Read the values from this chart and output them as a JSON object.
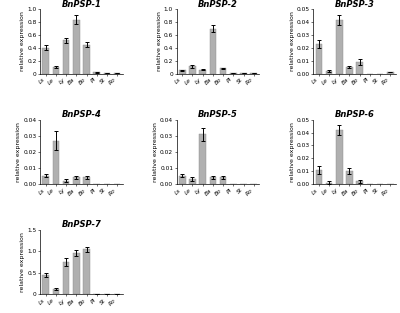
{
  "panels": [
    {
      "title": "BnPSP-1",
      "ylim": [
        0,
        1.0
      ],
      "yticks": [
        0.0,
        0.2,
        0.4,
        0.6,
        0.8,
        1.0
      ],
      "yticklabels": [
        "0",
        "0.2",
        "0.4",
        "0.6",
        "0.8",
        "1.0"
      ],
      "values": [
        0.4,
        0.1,
        0.52,
        0.84,
        0.45,
        0.02,
        0.01,
        0.01
      ],
      "errors": [
        0.04,
        0.02,
        0.04,
        0.07,
        0.04,
        0.005,
        0.005,
        0.005
      ]
    },
    {
      "title": "BnPSP-2",
      "ylim": [
        0,
        1.0
      ],
      "yticks": [
        0.0,
        0.2,
        0.4,
        0.6,
        0.8,
        1.0
      ],
      "yticklabels": [
        "0",
        "0.2",
        "0.4",
        "0.6",
        "0.8",
        "1.0"
      ],
      "values": [
        0.05,
        0.11,
        0.06,
        0.7,
        0.08,
        0.005,
        0.005,
        0.01
      ],
      "errors": [
        0.01,
        0.02,
        0.01,
        0.055,
        0.01,
        0.002,
        0.002,
        0.002
      ]
    },
    {
      "title": "BnPSP-3",
      "ylim": [
        0,
        0.05
      ],
      "yticks": [
        0.0,
        0.01,
        0.02,
        0.03,
        0.04,
        0.05
      ],
      "yticklabels": [
        "0.00",
        "0.01",
        "0.02",
        "0.03",
        "0.04",
        "0.05"
      ],
      "values": [
        0.023,
        0.002,
        0.042,
        0.005,
        0.009,
        0.0,
        0.0,
        0.001
      ],
      "errors": [
        0.003,
        0.001,
        0.004,
        0.001,
        0.002,
        0.0,
        0.0,
        0.0
      ]
    },
    {
      "title": "BnPSP-4",
      "ylim": [
        0,
        0.04
      ],
      "yticks": [
        0.0,
        0.01,
        0.02,
        0.03,
        0.04
      ],
      "yticklabels": [
        "0.00",
        "0.01",
        "0.02",
        "0.03",
        "0.04"
      ],
      "values": [
        0.005,
        0.027,
        0.002,
        0.004,
        0.004,
        0.0,
        0.0,
        0.0
      ],
      "errors": [
        0.001,
        0.006,
        0.001,
        0.001,
        0.001,
        0.0,
        0.0,
        0.0
      ]
    },
    {
      "title": "BnPSP-5",
      "ylim": [
        0,
        0.04
      ],
      "yticks": [
        0.0,
        0.01,
        0.02,
        0.03,
        0.04
      ],
      "yticklabels": [
        "0.00",
        "0.01",
        "0.02",
        "0.03",
        "0.04"
      ],
      "values": [
        0.005,
        0.003,
        0.031,
        0.004,
        0.004,
        0.0,
        0.0,
        0.0
      ],
      "errors": [
        0.001,
        0.001,
        0.004,
        0.001,
        0.001,
        0.0,
        0.0,
        0.0
      ]
    },
    {
      "title": "BnPSP-6",
      "ylim": [
        0,
        0.05
      ],
      "yticks": [
        0.0,
        0.01,
        0.02,
        0.03,
        0.04,
        0.05
      ],
      "yticklabels": [
        "0.00",
        "0.01",
        "0.02",
        "0.03",
        "0.04",
        "0.05"
      ],
      "values": [
        0.011,
        0.001,
        0.042,
        0.01,
        0.002,
        0.0,
        0.0,
        0.0
      ],
      "errors": [
        0.003,
        0.001,
        0.004,
        0.002,
        0.001,
        0.0,
        0.0,
        0.0
      ]
    },
    {
      "title": "BnPSP-7",
      "ylim": [
        0,
        1.5
      ],
      "yticks": [
        0.0,
        0.5,
        1.0,
        1.5
      ],
      "yticklabels": [
        "0",
        "0.5",
        "1.0",
        "1.5"
      ],
      "values": [
        0.45,
        0.12,
        0.76,
        0.96,
        1.05,
        0.01,
        0.01,
        0.01
      ],
      "errors": [
        0.04,
        0.03,
        0.09,
        0.07,
        0.06,
        0.005,
        0.005,
        0.005
      ]
    }
  ],
  "xlabels": [
    "Ls",
    "Le",
    "Ly",
    "Ba",
    "Bo",
    "Pl",
    "St",
    "Ro"
  ],
  "bar_color": "#b0b0b0",
  "bar_edgecolor": "#888888",
  "ylabel": "relative expression",
  "bg_color": "#f5f5f5"
}
